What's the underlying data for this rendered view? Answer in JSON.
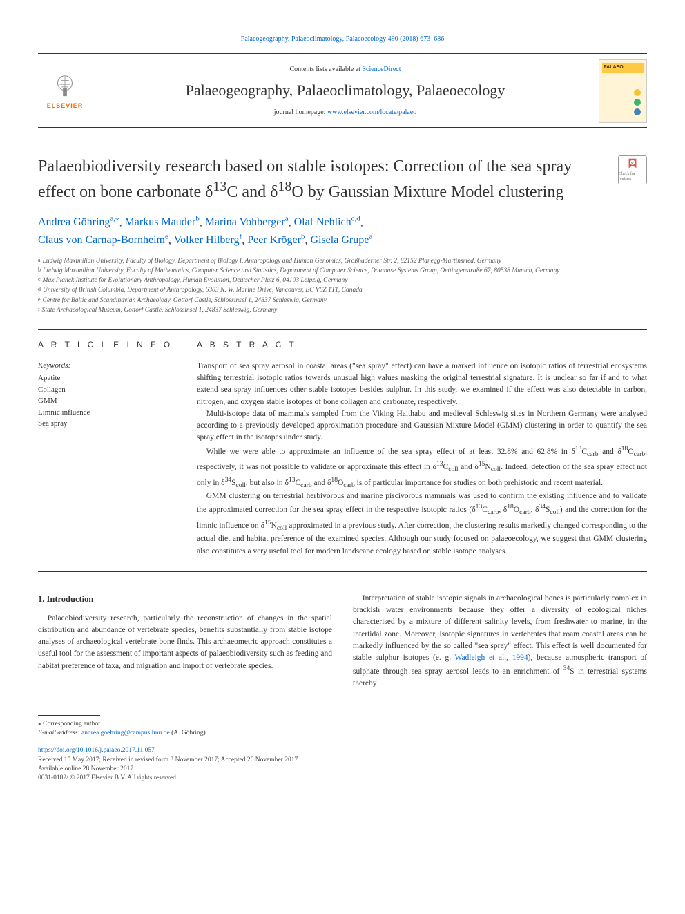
{
  "colors": {
    "link": "#0066cc",
    "text": "#333333",
    "elsevier_orange": "#ff6600",
    "cover_bg": "#fff4d6",
    "badge_bg": "#ffc845",
    "dot1": "#f4c430",
    "dot2": "#3cb371",
    "dot3": "#4682b4"
  },
  "top_citation": "Palaeogeography, Palaeoclimatology, Palaeoecology 490 (2018) 673–686",
  "header": {
    "contents_label": "Contents lists available at ",
    "contents_link_text": "ScienceDirect",
    "journal_name": "Palaeogeography, Palaeoclimatology, Palaeoecology",
    "homepage_label": "journal homepage: ",
    "homepage_link_text": "www.elsevier.com/locate/palaeo",
    "publisher": "ELSEVIER",
    "cover_badge_text": "PALAEO"
  },
  "article": {
    "title_html": "Palaeobiodiversity research based on stable isotopes: Correction of the sea spray effect on bone carbonate δ<sup>13</sup>C and δ<sup>18</sup>O by Gaussian Mixture Model clustering",
    "updates_label": "Check for updates",
    "authors": [
      {
        "name": "Andrea Göhring",
        "affils": "a,",
        "corr": "⁎"
      },
      {
        "name": "Markus Mauder",
        "affils": "b"
      },
      {
        "name": "Marina Vohberger",
        "affils": "a"
      },
      {
        "name": "Olaf Nehlich",
        "affils": "c,d"
      },
      {
        "name": "Claus von Carnap-Bornheim",
        "affils": "e"
      },
      {
        "name": "Volker Hilberg",
        "affils": "f"
      },
      {
        "name": "Peer Kröger",
        "affils": "b"
      },
      {
        "name": "Gisela Grupe",
        "affils": "a"
      }
    ],
    "affiliations": [
      {
        "letter": "a",
        "text": "Ludwig Maximilian University, Faculty of Biology, Department of Biology I, Anthropology and Human Genomics, Großhaderner Str. 2, 82152 Planegg-Martinsried, Germany"
      },
      {
        "letter": "b",
        "text": "Ludwig Maximilian University, Faculty of Mathematics, Computer Science and Statistics, Department of Computer Science, Database Systems Group, Oettingenstraße 67, 80538 Munich, Germany"
      },
      {
        "letter": "c",
        "text": "Max Planck Institute for Evolutionary Anthropology, Human Evolution, Deutscher Platz 6, 04103 Leipzig, Germany"
      },
      {
        "letter": "d",
        "text": "University of British Columbia, Department of Anthropology, 6303 N. W. Marine Drive, Vancouver, BC V6Z 1T1, Canada"
      },
      {
        "letter": "e",
        "text": "Centre for Baltic and Scandinavian Archaeology, Gottorf Castle, Schlossinsel 1, 24837 Schleswig, Germany"
      },
      {
        "letter": "f",
        "text": "State Archaeological Museum, Gottorf Castle, Schlossinsel 1, 24837 Schleswig, Germany"
      }
    ]
  },
  "article_info": {
    "heading": "A R T I C L E  I N F O",
    "keywords_label": "Keywords:",
    "keywords": [
      "Apatite",
      "Collagen",
      "GMM",
      "Limnic influence",
      "Sea spray"
    ]
  },
  "abstract": {
    "heading": "A B S T R A C T",
    "paragraphs_html": [
      "Transport of sea spray aerosol in coastal areas (\"sea spray\" effect) can have a marked influence on isotopic ratios of terrestrial ecosystems shifting terrestrial isotopic ratios towards unusual high values masking the original terrestrial signature. It is unclear so far if and to what extend sea spray influences other stable isotopes besides sulphur. In this study, we examined if the effect was also detectable in carbon, nitrogen, and oxygen stable isotopes of bone collagen and carbonate, respectively.",
      "Multi-isotope data of mammals sampled from the Viking Haithabu and medieval Schleswig sites in Northern Germany were analysed according to a previously developed approximation procedure and Gaussian Mixture Model (GMM) clustering in order to quantify the sea spray effect in the isotopes under study.",
      "While we were able to approximate an influence of the sea spray effect of at least 32.8% and 62.8% in δ<sup>13</sup>C<sub>carb</sub> and δ<sup>18</sup>O<sub>carb</sub>, respectively, it was not possible to validate or approximate this effect in δ<sup>13</sup>C<sub>coll</sub> and δ<sup>15</sup>N<sub>coll</sub>. Indeed, detection of the sea spray effect not only in δ<sup>34</sup>S<sub>coll</sub>, but also in δ<sup>13</sup>C<sub>carb</sub> and δ<sup>18</sup>O<sub>carb</sub> is of particular importance for studies on both prehistoric and recent material.",
      "GMM clustering on terrestrial herbivorous and marine piscivorous mammals was used to confirm the existing influence and to validate the approximated correction for the sea spray effect in the respective isotopic ratios (δ<sup>13</sup>C<sub>carb</sub>, δ<sup>18</sup>O<sub>carb</sub>, δ<sup>34</sup>S<sub>coll</sub>) and the correction for the limnic influence on δ<sup>15</sup>N<sub>coll</sub> approximated in a previous study. After correction, the clustering results markedly changed corresponding to the actual diet and habitat preference of the examined species. Although our study focused on palaeoecology, we suggest that GMM clustering also constitutes a very useful tool for modern landscape ecology based on stable isotope analyses."
    ]
  },
  "body": {
    "section_heading": "1. Introduction",
    "left_paragraphs": [
      "Palaeobiodiversity research, particularly the reconstruction of changes in the spatial distribution and abundance of vertebrate species, benefits substantially from stable isotope analyses of archaeological vertebrate bone finds. This archaeometric approach constitutes a useful tool for the assessment of important aspects of palaeobiodiversity such as feeding and habitat preference of taxa, and migration and import of vertebrate species."
    ],
    "right_paragraphs_html": [
      "Interpretation of stable isotopic signals in archaeological bones is particularly complex in brackish water environments because they offer a diversity of ecological niches characterised by a mixture of different salinity levels, from freshwater to marine, in the intertidal zone. Moreover, isotopic signatures in vertebrates that roam coastal areas can be markedly influenced by the so called \"sea spray\" effect. This effect is well documented for stable sulphur isotopes (e. g. <a data-name=\"citation-link\" data-interactable=\"true\">Wadleigh et al., 1994</a>), because atmospheric transport of sulphate through sea spray aerosol leads to an enrichment of <sup>34</sup>S in terrestrial systems thereby"
    ]
  },
  "footer": {
    "corr_symbol": "⁎",
    "corr_text": "Corresponding author.",
    "email_label": "E-mail address: ",
    "email": "andrea.goehring@campus.lmu.de",
    "email_suffix": " (A. Göhring).",
    "doi_link": "https://doi.org/10.1016/j.palaeo.2017.11.057",
    "received": "Received 15 May 2017; Received in revised form 3 November 2017; Accepted 26 November 2017",
    "online": "Available online 28 November 2017",
    "copyright": "0031-0182/ © 2017 Elsevier B.V. All rights reserved."
  }
}
